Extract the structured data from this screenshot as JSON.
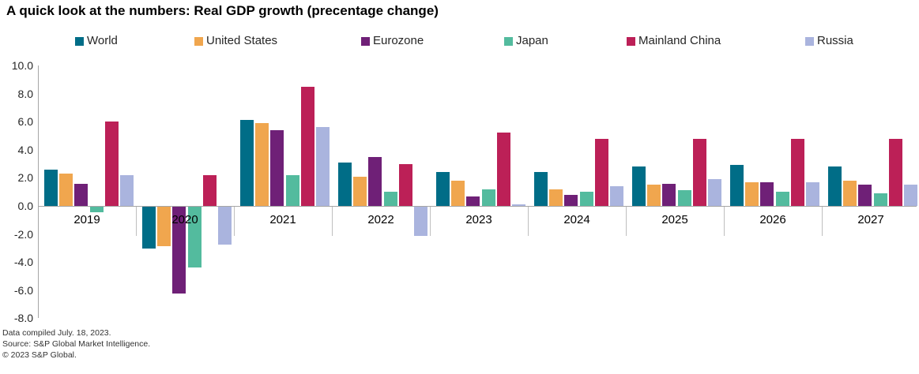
{
  "header": {
    "title": "A quick look at the numbers: Real GDP growth (precentage change)"
  },
  "chart_data": {
    "type": "bar",
    "title": "A quick look at the numbers: Real GDP growth (precentage change)",
    "xlabel": "",
    "ylabel": "",
    "categories": [
      "2019",
      "2020",
      "2021",
      "2022",
      "2023",
      "2024",
      "2025",
      "2026",
      "2027"
    ],
    "series": [
      {
        "name": "World",
        "color": "#006d87",
        "values": [
          2.6,
          -3.0,
          6.1,
          3.1,
          2.4,
          2.4,
          2.8,
          2.9,
          2.8
        ]
      },
      {
        "name": "United States",
        "color": "#f0a64e",
        "values": [
          2.3,
          -2.8,
          5.9,
          2.1,
          1.8,
          1.2,
          1.5,
          1.7,
          1.8
        ]
      },
      {
        "name": "Eurozone",
        "color": "#6f2077",
        "values": [
          1.6,
          -6.2,
          5.4,
          3.5,
          0.7,
          0.8,
          1.6,
          1.7,
          1.5
        ]
      },
      {
        "name": "Japan",
        "color": "#53bb9e",
        "values": [
          -0.4,
          -4.3,
          2.2,
          1.0,
          1.2,
          1.0,
          1.1,
          1.0,
          0.9
        ]
      },
      {
        "name": "Mainland China",
        "color": "#bc2057",
        "values": [
          6.0,
          2.2,
          8.5,
          3.0,
          5.2,
          4.8,
          4.8,
          4.8,
          4.8
        ]
      },
      {
        "name": "Russia",
        "color": "#aab4de",
        "values": [
          2.2,
          -2.7,
          5.6,
          -2.1,
          0.1,
          1.4,
          1.9,
          1.7,
          1.5
        ]
      }
    ],
    "ylim": [
      -8,
      10
    ],
    "ytick_labels": [
      "10.0",
      "8.0",
      "6.0",
      "4.0",
      "2.0",
      "0.0",
      "-2.0",
      "-4.0",
      "-6.0",
      "-8.0"
    ],
    "grid": false,
    "legend_position": "top"
  },
  "footer": {
    "line1": "Data compiled July. 18, 2023.",
    "line2": "Source: S&P Global Market Intelligence.",
    "line3": "© 2023 S&P Global."
  }
}
